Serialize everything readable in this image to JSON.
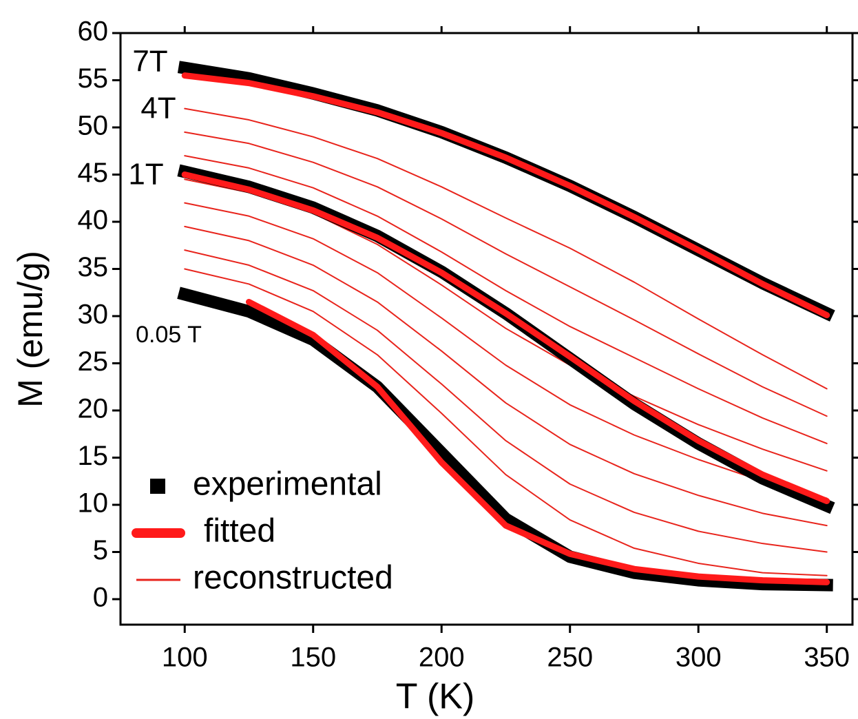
{
  "chart_data": {
    "type": "line",
    "xlabel": "T (K)",
    "ylabel": "M (emu/g)",
    "xlim": [
      75,
      360
    ],
    "ylim": [
      -2.7,
      60
    ],
    "xticks": [
      100,
      150,
      200,
      250,
      300,
      350
    ],
    "yticks": [
      0,
      5,
      10,
      15,
      20,
      25,
      30,
      35,
      40,
      45,
      50,
      55,
      60
    ],
    "annotations": [
      "7T",
      "4T",
      "1T",
      "0.05 T"
    ],
    "x": [
      100,
      125,
      150,
      175,
      200,
      225,
      250,
      275,
      300,
      325,
      350
    ],
    "series": [
      {
        "name": "experimental",
        "color": "#000000",
        "curves": [
          [
            56.3,
            55.2,
            53.6,
            51.8,
            49.5,
            46.8,
            43.8,
            40.5,
            37,
            33.5,
            30.3
          ],
          [
            45.3,
            43.7,
            41.5,
            38.5,
            34.7,
            30.3,
            25.5,
            20.7,
            16.5,
            12.8,
            9.9
          ],
          [
            32.3,
            30.5,
            27.5,
            22.5,
            15.5,
            8.5,
            4.5,
            2.8,
            2.0,
            1.6,
            1.5
          ]
        ]
      },
      {
        "name": "fitted",
        "color": "#ff1a1a",
        "curves": [
          [
            55.5,
            54.7,
            53.3,
            51.6,
            49.4,
            46.8,
            43.8,
            40.5,
            37,
            33.4,
            30.1
          ],
          [
            45.0,
            43.4,
            41.2,
            38.3,
            34.6,
            30.3,
            25.7,
            21.0,
            16.8,
            13.2,
            10.4
          ],
          [
            null,
            31.5,
            28,
            22.5,
            14.5,
            7.8,
            4.8,
            3.2,
            2.4,
            2.0,
            1.8
          ]
        ]
      },
      {
        "name": "reconstructed",
        "color": "#e8241c",
        "curves": [
          [
            52,
            50.8,
            49.0,
            46.7,
            43.7,
            40.4,
            37.2,
            33.6,
            29.7,
            25.9,
            22.3
          ],
          [
            49.5,
            48.3,
            46.3,
            43.7,
            40.3,
            36.6,
            33.1,
            29.6,
            26.0,
            22.5,
            19.4
          ],
          [
            47,
            45.7,
            43.6,
            40.6,
            36.8,
            32.7,
            28.9,
            25.6,
            22.3,
            19.2,
            16.5
          ],
          [
            44.5,
            43.1,
            40.9,
            37.6,
            33.3,
            28.7,
            24.8,
            21.5,
            18.5,
            15.9,
            13.6
          ],
          [
            42,
            40.6,
            38.2,
            34.6,
            29.8,
            24.8,
            20.6,
            17.4,
            14.8,
            12.5,
            10.7
          ],
          [
            39.5,
            38.0,
            35.4,
            31.5,
            26.3,
            20.8,
            16.4,
            13.3,
            11.0,
            9.1,
            7.8
          ],
          [
            37,
            35.4,
            32.7,
            28.5,
            22.8,
            16.8,
            12.2,
            9.2,
            7.2,
            5.9,
            5
          ],
          [
            35,
            33.4,
            30.5,
            25.9,
            19.7,
            13.2,
            8.4,
            5.4,
            3.8,
            2.8,
            2.5
          ]
        ]
      }
    ]
  }
}
